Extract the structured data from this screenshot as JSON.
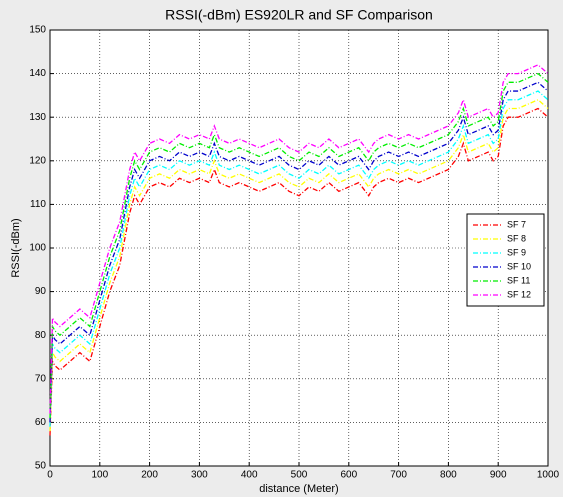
{
  "chart_data": {
    "type": "line",
    "title": "RSSI(-dBm) ES920LR and SF Comparison",
    "xlabel": "distance (Meter)",
    "ylabel": "RSSI(-dBm)",
    "x": [
      0,
      5,
      10,
      20,
      40,
      60,
      80,
      100,
      120,
      140,
      160,
      170,
      180,
      200,
      220,
      240,
      260,
      280,
      300,
      320,
      330,
      340,
      360,
      380,
      400,
      420,
      440,
      460,
      480,
      500,
      520,
      540,
      560,
      580,
      600,
      620,
      640,
      650,
      660,
      680,
      700,
      720,
      740,
      760,
      780,
      800,
      820,
      830,
      840,
      860,
      880,
      890,
      900,
      910,
      920,
      940,
      960,
      980,
      1000
    ],
    "series": [
      {
        "name": "SF 7",
        "color": "#ff0000",
        "values": [
          57,
          74,
          73,
          72,
          74,
          76,
          74,
          82,
          90,
          96,
          108,
          112,
          110,
          114,
          115,
          114,
          116,
          115,
          116,
          115,
          118,
          115,
          114,
          115,
          114,
          113,
          114,
          115,
          113,
          112,
          114,
          113,
          115,
          113,
          114,
          115,
          112,
          114,
          115,
          116,
          115,
          116,
          115,
          116,
          117,
          118,
          121,
          124,
          120,
          121,
          122,
          120,
          121,
          128,
          130,
          130,
          131,
          132,
          130
        ]
      },
      {
        "name": "SF 8",
        "color": "#ffff00",
        "values": [
          58,
          76,
          75,
          74,
          76,
          78,
          76,
          84,
          92,
          98,
          110,
          114,
          112,
          116,
          117,
          116,
          118,
          117,
          118,
          117,
          120,
          117,
          116,
          117,
          116,
          115,
          116,
          117,
          115,
          114,
          116,
          115,
          117,
          115,
          116,
          117,
          114,
          116,
          117,
          118,
          117,
          118,
          117,
          118,
          119,
          120,
          123,
          126,
          122,
          123,
          124,
          122,
          123,
          130,
          132,
          132,
          133,
          134,
          132
        ]
      },
      {
        "name": "SF 9",
        "color": "#00ffff",
        "values": [
          59,
          78,
          77,
          76,
          78,
          80,
          78,
          86,
          94,
          100,
          112,
          116,
          114,
          118,
          119,
          118,
          120,
          119,
          120,
          119,
          122,
          119,
          118,
          119,
          118,
          117,
          118,
          119,
          117,
          116,
          118,
          117,
          119,
          117,
          118,
          119,
          116,
          118,
          119,
          120,
          119,
          120,
          119,
          120,
          121,
          122,
          125,
          128,
          124,
          125,
          126,
          124,
          125,
          132,
          134,
          134,
          135,
          136,
          134
        ]
      },
      {
        "name": "SF 10",
        "color": "#0000cc",
        "values": [
          60,
          80,
          79,
          78,
          80,
          82,
          80,
          88,
          96,
          102,
          114,
          118,
          116,
          120,
          121,
          120,
          122,
          121,
          122,
          121,
          124,
          121,
          120,
          121,
          120,
          119,
          120,
          121,
          119,
          118,
          120,
          119,
          121,
          119,
          120,
          121,
          118,
          120,
          121,
          122,
          121,
          122,
          121,
          122,
          123,
          124,
          127,
          130,
          126,
          127,
          128,
          126,
          127,
          134,
          136,
          136,
          137,
          138,
          136
        ]
      },
      {
        "name": "SF 11",
        "color": "#00ee00",
        "values": [
          61,
          82,
          81,
          80,
          82,
          84,
          82,
          90,
          98,
          104,
          116,
          120,
          118,
          122,
          123,
          122,
          124,
          123,
          124,
          123,
          126,
          123,
          122,
          123,
          122,
          121,
          122,
          123,
          121,
          120,
          122,
          121,
          123,
          121,
          122,
          123,
          120,
          122,
          123,
          124,
          123,
          124,
          123,
          124,
          125,
          126,
          129,
          132,
          128,
          129,
          130,
          128,
          129,
          136,
          138,
          138,
          139,
          140,
          138
        ]
      },
      {
        "name": "SF 12",
        "color": "#ff00ff",
        "values": [
          62,
          84,
          83,
          82,
          84,
          86,
          84,
          92,
          100,
          106,
          118,
          122,
          120,
          124,
          125,
          124,
          126,
          125,
          126,
          125,
          128,
          125,
          124,
          125,
          124,
          123,
          124,
          125,
          123,
          122,
          124,
          123,
          125,
          123,
          124,
          125,
          122,
          124,
          125,
          126,
          125,
          126,
          125,
          126,
          127,
          128,
          131,
          134,
          130,
          131,
          132,
          130,
          131,
          138,
          140,
          140,
          141,
          142,
          140
        ]
      }
    ],
    "xlim": [
      0,
      1000
    ],
    "xticks": [
      0,
      100,
      200,
      300,
      400,
      500,
      600,
      700,
      800,
      900,
      1000
    ],
    "ylim": [
      50,
      150
    ],
    "yticks": [
      50,
      60,
      70,
      80,
      90,
      100,
      110,
      120,
      130,
      140,
      150
    ],
    "grid": true,
    "legend": "right"
  }
}
